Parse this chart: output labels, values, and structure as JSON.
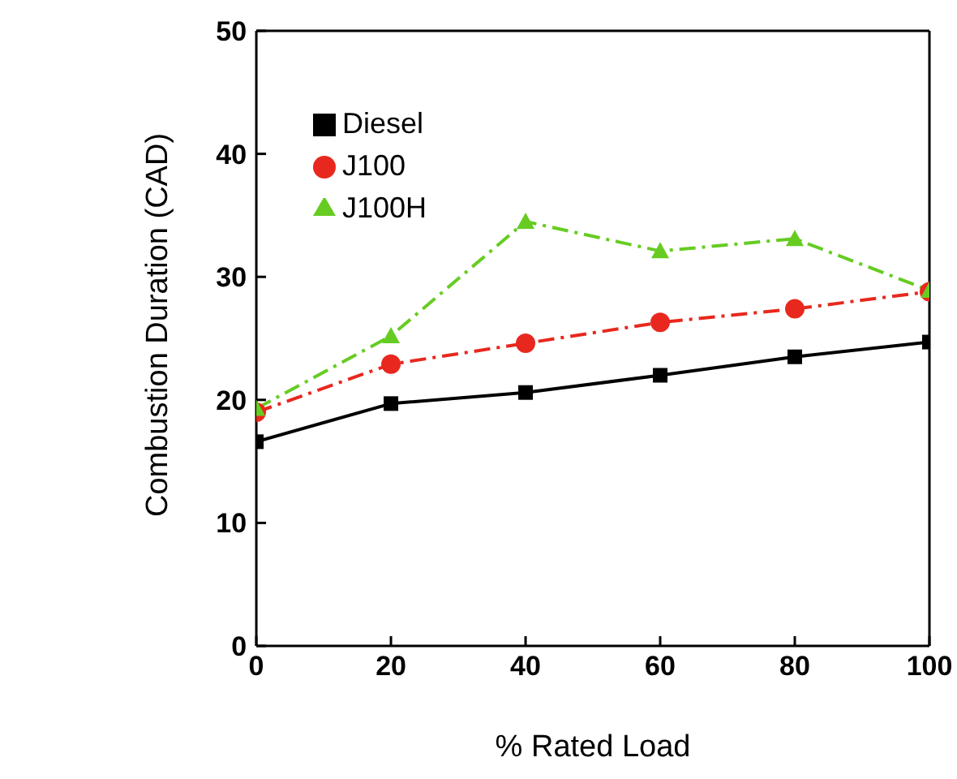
{
  "chart_data": {
    "type": "line",
    "xlabel": "% Rated Load",
    "ylabel": "Combustion Duration (CAD)",
    "x": [
      0,
      20,
      40,
      60,
      80,
      100
    ],
    "xlim": [
      0,
      100
    ],
    "xticks": [
      0,
      20,
      40,
      60,
      80,
      100
    ],
    "ylim": [
      0,
      50
    ],
    "yticks": [
      0,
      10,
      20,
      30,
      40,
      50
    ],
    "grid": false,
    "legend": "top left",
    "series": [
      {
        "name": "Diesel",
        "color": "#000000",
        "marker": "square",
        "line_style": "solid",
        "values": [
          16.6,
          19.7,
          20.6,
          22.0,
          23.5,
          24.7
        ]
      },
      {
        "name": "J100",
        "color": "#e8281e",
        "marker": "circle",
        "line_style": "dashed",
        "values": [
          19.0,
          22.9,
          24.6,
          26.3,
          27.4,
          28.8
        ]
      },
      {
        "name": "J100H",
        "color": "#66cc22",
        "marker": "triangle",
        "line_style": "dashed",
        "values": [
          19.3,
          25.2,
          34.5,
          32.1,
          33.1,
          28.9
        ]
      }
    ]
  }
}
